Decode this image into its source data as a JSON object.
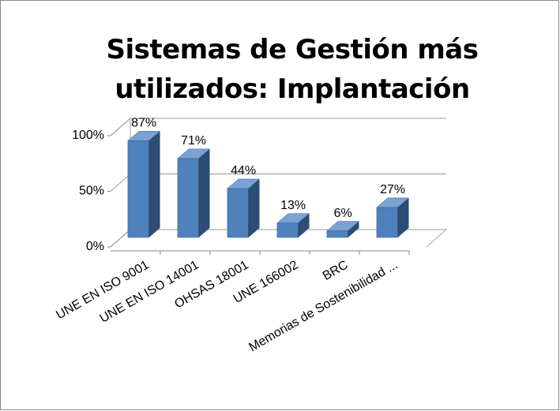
{
  "chart_data": {
    "type": "bar3d",
    "title": "Sistemas de Gestión más utilizados: Implantación",
    "categories": [
      "UNE EN ISO 9001",
      "UNE EN ISO 14001",
      "OHSAS 18001",
      "UNE 166002",
      "BRC",
      "Memorias de Sostenibilidad ..."
    ],
    "values": [
      87,
      71,
      44,
      13,
      6,
      27
    ],
    "value_labels": [
      "87%",
      "71%",
      "44%",
      "13%",
      "6%",
      "27%"
    ],
    "color": "#4f81bd",
    "ylim": [
      0,
      100
    ],
    "yticks": [
      {
        "value": 0,
        "label": "0%"
      },
      {
        "value": 50,
        "label": "50%"
      },
      {
        "value": 100,
        "label": "100%"
      }
    ],
    "grid": true
  }
}
